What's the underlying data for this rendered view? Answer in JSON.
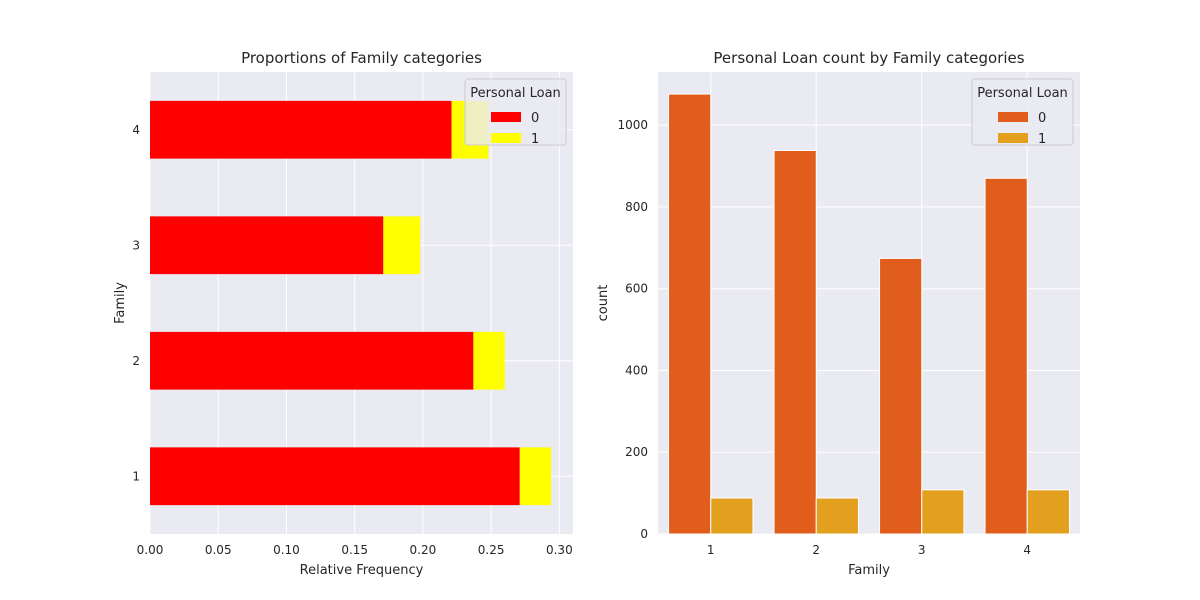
{
  "chart_data": [
    {
      "type": "bar",
      "orientation": "horizontal",
      "stacked": true,
      "title": "Proportions of Family categories",
      "xlabel": "Relative Frequency",
      "ylabel": "Family",
      "categories": [
        "1",
        "2",
        "3",
        "4"
      ],
      "series": [
        {
          "name": "0",
          "values": [
            0.271,
            0.237,
            0.171,
            0.221
          ],
          "color": "#ff0000"
        },
        {
          "name": "1",
          "values": [
            0.023,
            0.023,
            0.027,
            0.027
          ],
          "color": "#ffff00"
        }
      ],
      "xlim": [
        0.0,
        0.31
      ],
      "xticks": [
        "0.00",
        "0.05",
        "0.10",
        "0.15",
        "0.20",
        "0.25",
        "0.30"
      ],
      "xtick_values": [
        0.0,
        0.05,
        0.1,
        0.15,
        0.2,
        0.25,
        0.3
      ],
      "legend": {
        "title": "Personal Loan",
        "position": "top-right"
      },
      "grid": true
    },
    {
      "type": "bar",
      "orientation": "vertical",
      "stacked": false,
      "title": "Personal Loan count by Family categories",
      "xlabel": "Family",
      "ylabel": "count",
      "categories": [
        "1",
        "2",
        "3",
        "4"
      ],
      "series": [
        {
          "name": "0",
          "values": [
            1076,
            938,
            674,
            870
          ],
          "color": "#e05d1b"
        },
        {
          "name": "1",
          "values": [
            88,
            88,
            108,
            108
          ],
          "color": "#e3a01e"
        }
      ],
      "ylim": [
        0,
        1130
      ],
      "yticks": [
        "0",
        "200",
        "400",
        "600",
        "800",
        "1000"
      ],
      "ytick_values": [
        0,
        200,
        400,
        600,
        800,
        1000
      ],
      "legend": {
        "title": "Personal Loan",
        "position": "top-right"
      },
      "grid": true
    }
  ]
}
